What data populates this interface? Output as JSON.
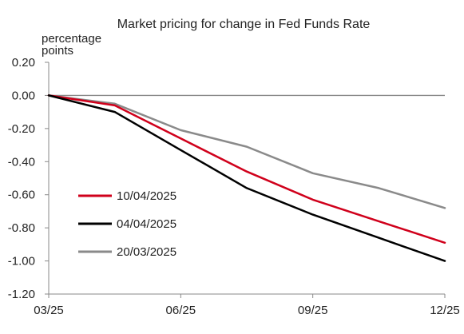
{
  "chart_data": {
    "type": "line",
    "title": "Market pricing for change in Fed Funds Rate",
    "ylabel_line1": "percentage",
    "ylabel_line2": "points",
    "xlabel": "",
    "x": [
      0,
      1,
      2,
      3,
      4,
      5,
      6
    ],
    "x_ticks": [
      {
        "x": 0,
        "label": "03/25"
      },
      {
        "x": 2,
        "label": "06/25"
      },
      {
        "x": 4,
        "label": "09/25"
      },
      {
        "x": 6,
        "label": "12/25"
      }
    ],
    "ylim": [
      -1.2,
      0.2
    ],
    "y_ticks": [
      {
        "value": 0.2,
        "label": "0.20"
      },
      {
        "value": 0.0,
        "label": "0.00"
      },
      {
        "value": -0.2,
        "label": "-0.20"
      },
      {
        "value": -0.4,
        "label": "-0.40"
      },
      {
        "value": -0.6,
        "label": "-0.60"
      },
      {
        "value": -0.8,
        "label": "-0.80"
      },
      {
        "value": -1.0,
        "label": "-1.00"
      },
      {
        "value": -1.2,
        "label": "-1.20"
      }
    ],
    "zero_line": true,
    "grid": false,
    "legend_position": "lower-left",
    "series": [
      {
        "name": "10/04/2025",
        "color": "#d0001b",
        "values": [
          0.0,
          -0.06,
          -0.26,
          -0.46,
          -0.63,
          -0.76,
          -0.89
        ]
      },
      {
        "name": "04/04/2025",
        "color": "#000000",
        "values": [
          0.0,
          -0.1,
          -0.33,
          -0.56,
          -0.72,
          -0.86,
          -1.0
        ]
      },
      {
        "name": "20/03/2025",
        "color": "#8a8a8a",
        "values": [
          0.0,
          -0.05,
          -0.21,
          -0.31,
          -0.47,
          -0.56,
          -0.68
        ]
      }
    ]
  }
}
